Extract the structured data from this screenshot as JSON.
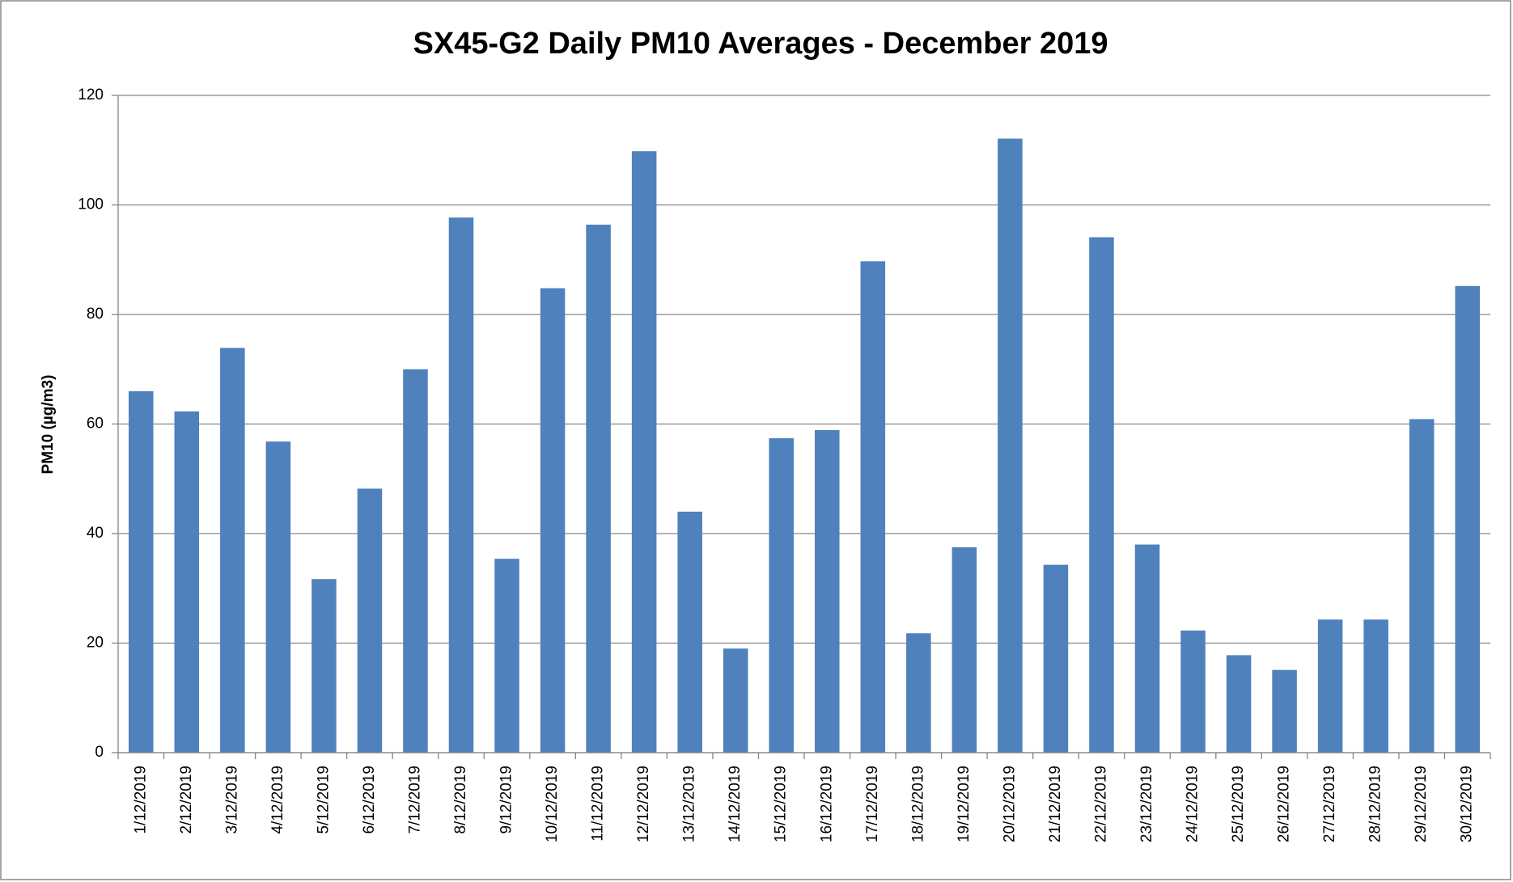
{
  "chart_data": {
    "type": "bar",
    "title": "SX45-G2 Daily PM10 Averages - December 2019",
    "y_label": "PM10 (µg/m3)",
    "categories": [
      "1/12/2019",
      "2/12/2019",
      "3/12/2019",
      "4/12/2019",
      "5/12/2019",
      "6/12/2019",
      "7/12/2019",
      "8/12/2019",
      "9/12/2019",
      "10/12/2019",
      "11/12/2019",
      "12/12/2019",
      "13/12/2019",
      "14/12/2019",
      "15/12/2019",
      "16/12/2019",
      "17/12/2019",
      "18/12/2019",
      "19/12/2019",
      "20/12/2019",
      "21/12/2019",
      "22/12/2019",
      "23/12/2019",
      "24/12/2019",
      "25/12/2019",
      "26/12/2019",
      "27/12/2019",
      "28/12/2019",
      "29/12/2019",
      "30/12/2019"
    ],
    "values": [
      66,
      62.3,
      73.9,
      56.8,
      31.7,
      48.2,
      70,
      97.7,
      35.4,
      84.8,
      96.4,
      109.8,
      44,
      19,
      57.4,
      58.9,
      89.7,
      21.8,
      37.5,
      112.1,
      34.3,
      94.1,
      38,
      22.3,
      17.8,
      15.1,
      24.3,
      24.3,
      60.9,
      85.2
    ],
    "color": "#4f81bd",
    "ylim": [
      0,
      120
    ],
    "yticks": [
      0,
      20,
      40,
      60,
      80,
      100,
      120
    ],
    "grid": true
  }
}
